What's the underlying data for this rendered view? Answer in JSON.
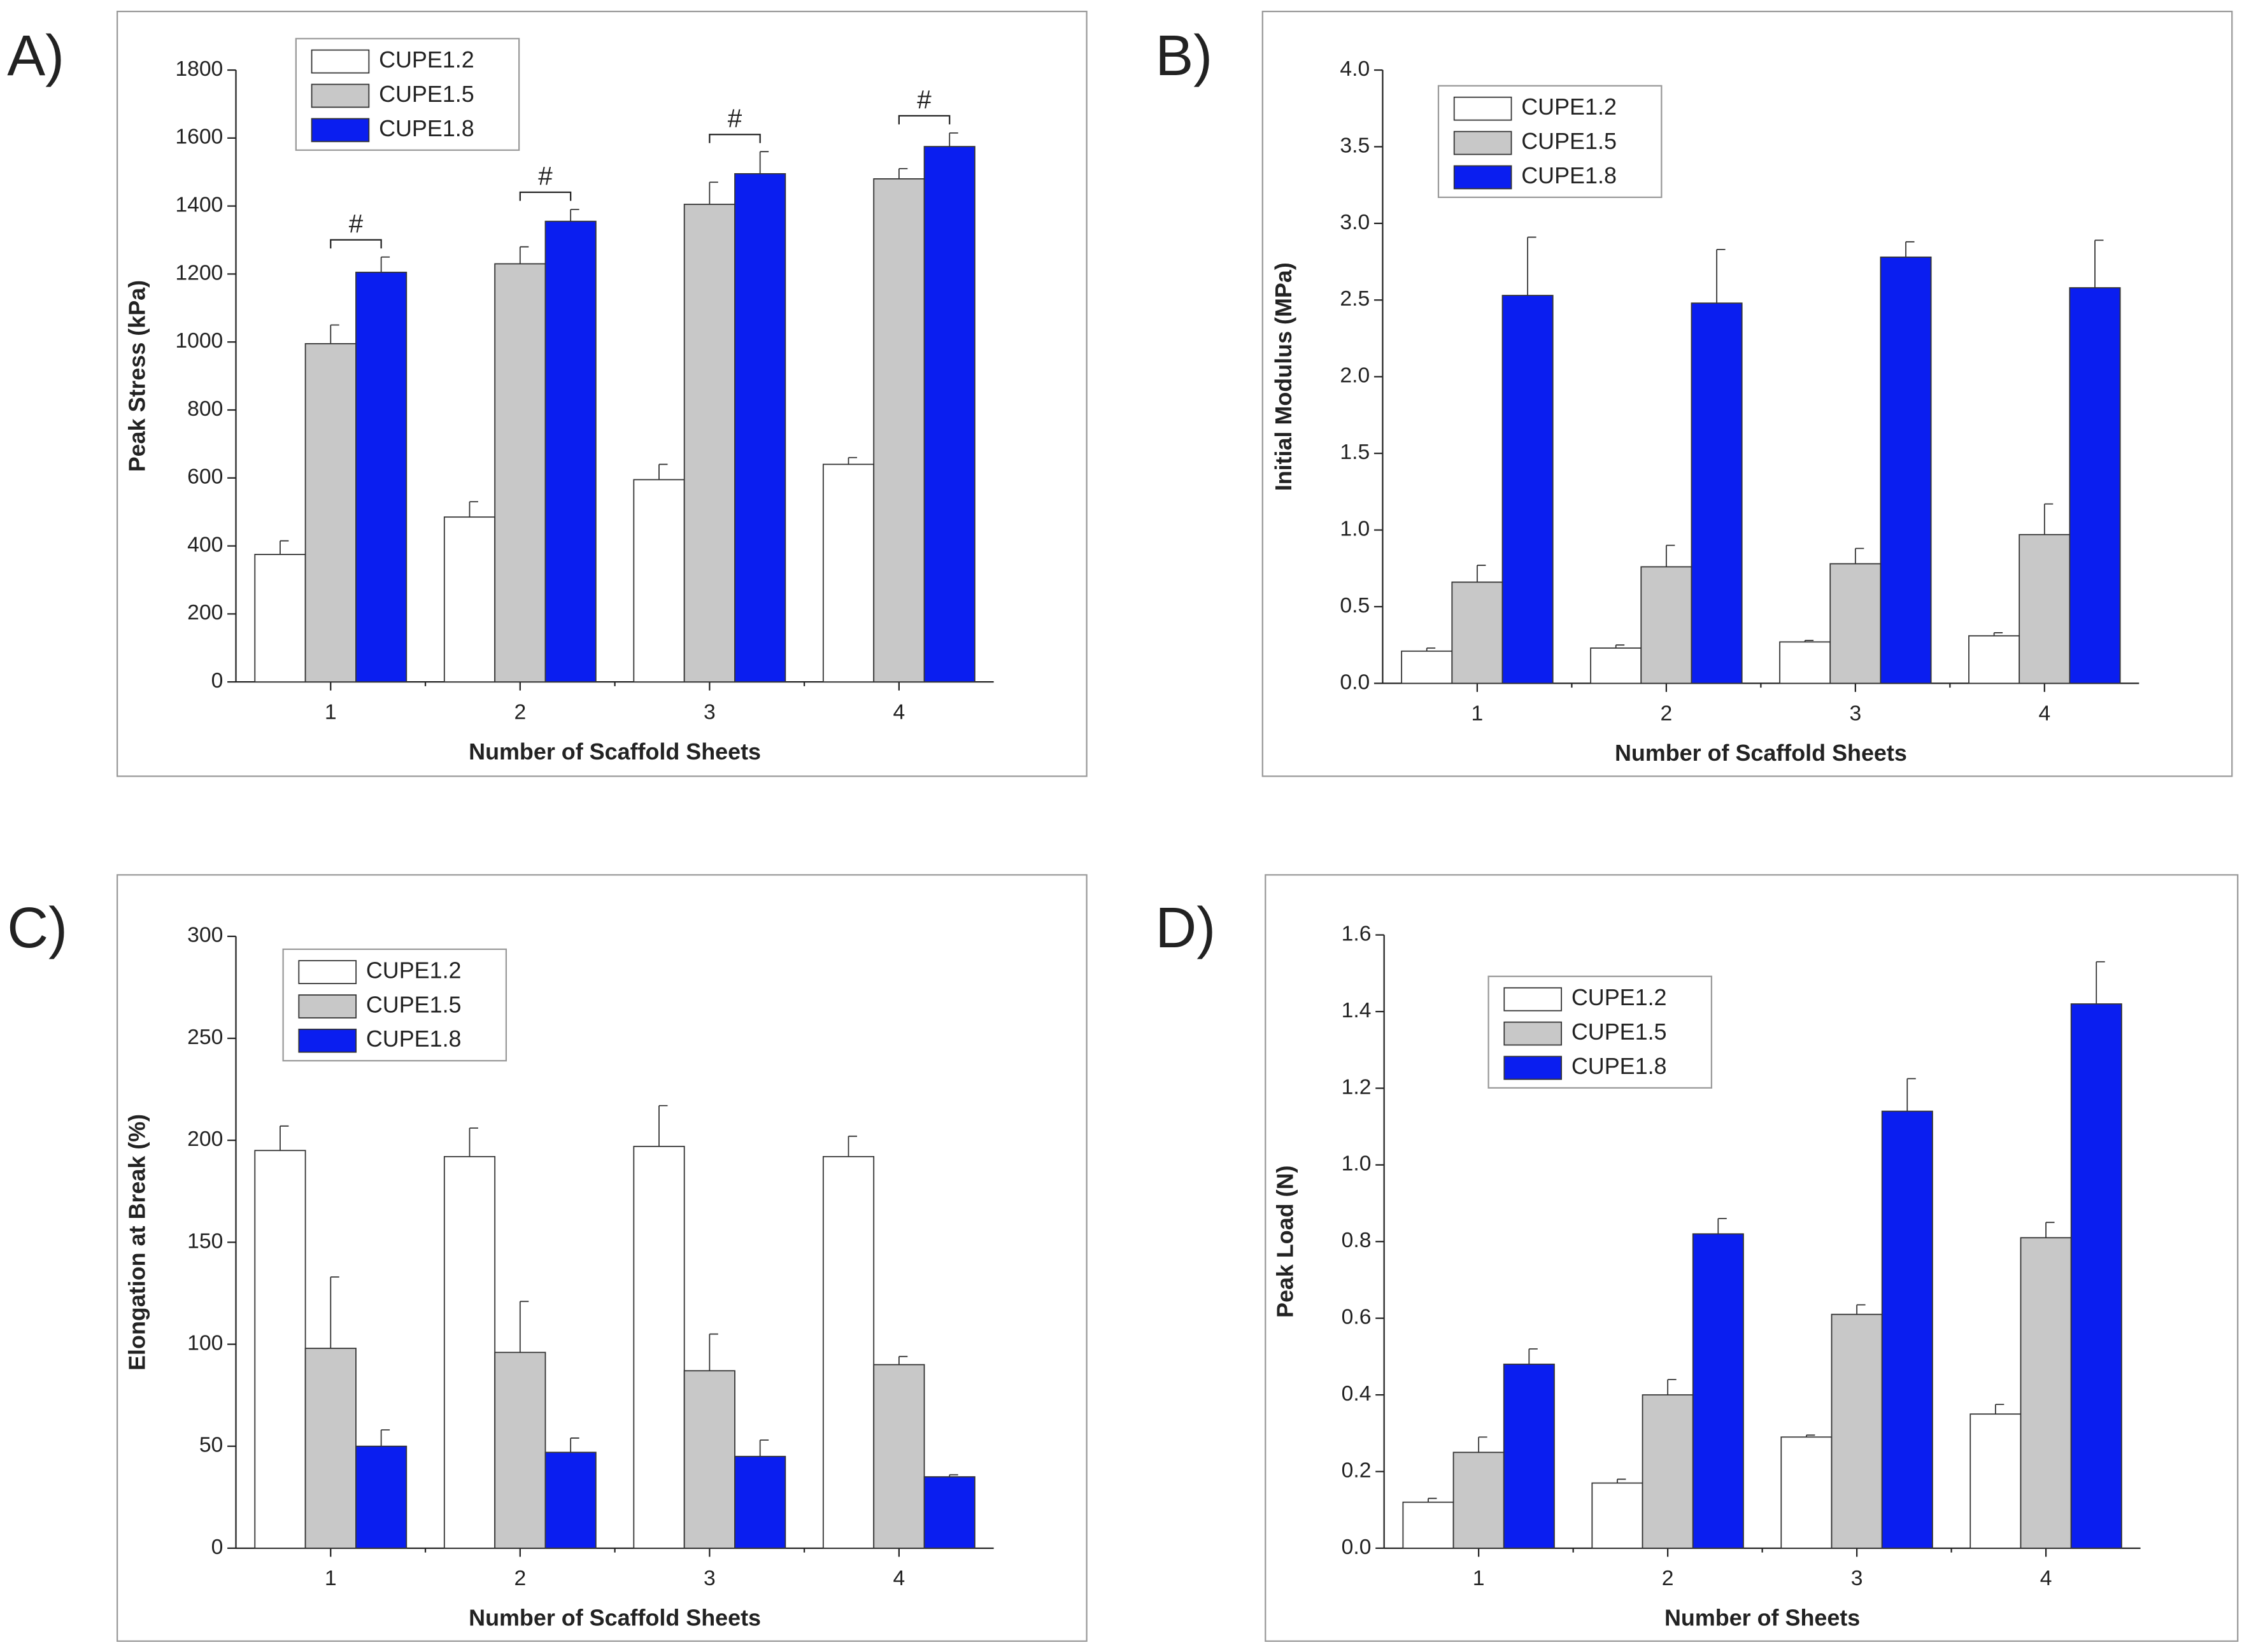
{
  "chart_data": [
    {
      "type": "bar",
      "panel": "A)",
      "x_label": "Number of Scaffold Sheets",
      "y_label": "Peak Stress (kPa)",
      "categories": [
        "1",
        "2",
        "3",
        "4"
      ],
      "ylim": [
        0,
        1800
      ],
      "yticks": [
        0,
        200,
        400,
        600,
        800,
        1000,
        1200,
        1400,
        1600,
        1800
      ],
      "series": [
        {
          "name": "CUPE1.2",
          "color": "#ffffff",
          "values": [
            375,
            485,
            595,
            640
          ],
          "errors": [
            40,
            45,
            45,
            20
          ]
        },
        {
          "name": "CUPE1.5",
          "color": "#c8c8c8",
          "values": [
            995,
            1230,
            1405,
            1480
          ],
          "errors": [
            55,
            50,
            65,
            30
          ]
        },
        {
          "name": "CUPE1.8",
          "color": "#0a1ef0",
          "values": [
            1205,
            1355,
            1495,
            1575
          ],
          "errors": [
            45,
            35,
            65,
            40
          ]
        }
      ],
      "annotations": [
        "#",
        "#",
        "#",
        "#"
      ]
    },
    {
      "type": "bar",
      "panel": "B)",
      "x_label": "Number of Scaffold Sheets",
      "y_label": "Initial Modulus (MPa)",
      "categories": [
        "1",
        "2",
        "3",
        "4"
      ],
      "ylim": [
        0,
        4
      ],
      "yticks": [
        {
          "value": 0,
          "label": "0.0"
        },
        0.5,
        {
          "value": 1,
          "label": "1.0"
        },
        1.5,
        {
          "value": 2,
          "label": "2.0"
        },
        2.5,
        {
          "value": 3,
          "label": "3.0"
        },
        3.5,
        {
          "value": 4,
          "label": "4.0"
        }
      ],
      "series": [
        {
          "name": "CUPE1.2",
          "color": "#ffffff",
          "values": [
            0.21,
            0.23,
            0.27,
            0.31
          ],
          "errors": [
            0.02,
            0.02,
            0.01,
            0.02
          ]
        },
        {
          "name": "CUPE1.5",
          "color": "#c8c8c8",
          "values": [
            0.66,
            0.76,
            0.78,
            0.97
          ],
          "errors": [
            0.11,
            0.14,
            0.1,
            0.2
          ]
        },
        {
          "name": "CUPE1.8",
          "color": "#0a1ef0",
          "values": [
            2.53,
            2.48,
            2.78,
            2.58
          ],
          "errors": [
            0.38,
            0.35,
            0.1,
            0.31
          ]
        }
      ]
    },
    {
      "type": "bar",
      "panel": "C)",
      "x_label": "Number of Scaffold Sheets",
      "y_label": "Elongation at Break (%)",
      "categories": [
        "1",
        "2",
        "3",
        "4"
      ],
      "ylim": [
        0,
        300
      ],
      "yticks": [
        0,
        50,
        100,
        150,
        200,
        250,
        300
      ],
      "series": [
        {
          "name": "CUPE1.2",
          "color": "#ffffff",
          "values": [
            195,
            192,
            197,
            192
          ],
          "errors": [
            12,
            14,
            20,
            10
          ]
        },
        {
          "name": "CUPE1.5",
          "color": "#c8c8c8",
          "values": [
            98,
            96,
            87,
            90
          ],
          "errors": [
            35,
            25,
            18,
            4
          ]
        },
        {
          "name": "CUPE1.8",
          "color": "#0a1ef0",
          "values": [
            50,
            47,
            45,
            35
          ],
          "errors": [
            8,
            7,
            8,
            1
          ]
        }
      ]
    },
    {
      "type": "bar",
      "panel": "D)",
      "x_label": "Number of Sheets",
      "y_label": "Peak Load (N)",
      "categories": [
        "1",
        "2",
        "3",
        "4"
      ],
      "ylim": [
        0,
        1.6
      ],
      "yticks": [
        {
          "value": 0,
          "label": "0.0"
        },
        0.2,
        0.4,
        0.6,
        0.8,
        {
          "value": 1,
          "label": "1.0"
        },
        1.2,
        1.4,
        1.6
      ],
      "series": [
        {
          "name": "CUPE1.2",
          "color": "#ffffff",
          "values": [
            0.12,
            0.17,
            0.29,
            0.35
          ],
          "errors": [
            0.01,
            0.01,
            0.005,
            0.025
          ]
        },
        {
          "name": "CUPE1.5",
          "color": "#c8c8c8",
          "values": [
            0.25,
            0.4,
            0.61,
            0.81
          ],
          "errors": [
            0.04,
            0.04,
            0.025,
            0.04
          ]
        },
        {
          "name": "CUPE1.8",
          "color": "#0a1ef0",
          "values": [
            0.48,
            0.82,
            1.14,
            1.42
          ],
          "errors": [
            0.04,
            0.04,
            0.085,
            0.11
          ]
        }
      ]
    }
  ]
}
